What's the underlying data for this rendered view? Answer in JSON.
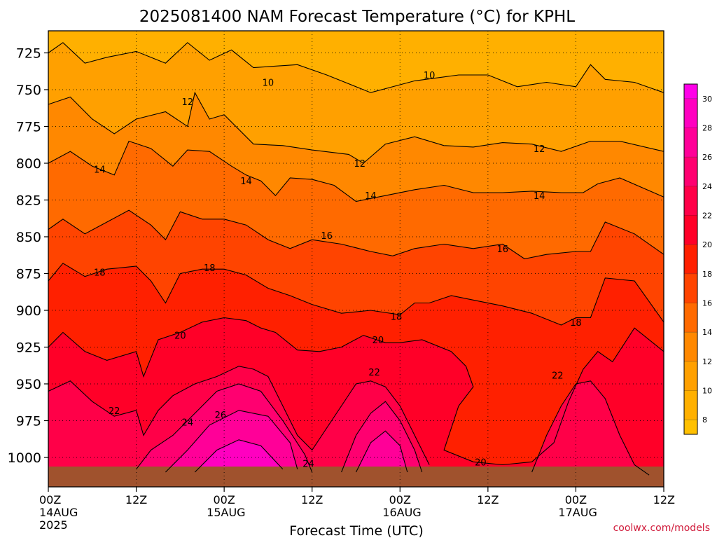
{
  "chart_data": {
    "type": "heatmap",
    "title": "2025081400 NAM Forecast Temperature (°C) for KPHL",
    "xlabel": "Forecast Time (UTC)",
    "credit": "coolwx.com/models",
    "x_ticks": [
      {
        "hour": 0,
        "label": "00Z",
        "date": "14AUG",
        "year": "2025"
      },
      {
        "hour": 12,
        "label": "12Z"
      },
      {
        "hour": 24,
        "label": "00Z",
        "date": "15AUG"
      },
      {
        "hour": 36,
        "label": "12Z"
      },
      {
        "hour": 48,
        "label": "00Z",
        "date": "16AUG"
      },
      {
        "hour": 60,
        "label": "12Z"
      },
      {
        "hour": 72,
        "label": "00Z",
        "date": "17AUG"
      },
      {
        "hour": 84,
        "label": "12Z"
      }
    ],
    "xlim": [
      0,
      84
    ],
    "y_ticks": [
      725,
      750,
      775,
      800,
      825,
      850,
      875,
      900,
      925,
      950,
      975,
      1000
    ],
    "ylim": [
      710,
      1020
    ],
    "y_reversed": true,
    "grid": true,
    "colorbar": {
      "ticks": [
        8,
        10,
        12,
        14,
        16,
        18,
        20,
        22,
        24,
        26,
        28,
        30
      ],
      "levels": [
        {
          "value": 7,
          "color": "#ffc000"
        },
        {
          "value": 9,
          "color": "#ffb000"
        },
        {
          "value": 11,
          "color": "#ffa000"
        },
        {
          "value": 13,
          "color": "#ff8800"
        },
        {
          "value": 15,
          "color": "#ff6a00"
        },
        {
          "value": 17,
          "color": "#ff4400"
        },
        {
          "value": 19,
          "color": "#ff2000"
        },
        {
          "value": 21,
          "color": "#ff0028"
        },
        {
          "value": 23,
          "color": "#ff0048"
        },
        {
          "value": 25,
          "color": "#ff0070"
        },
        {
          "value": 27,
          "color": "#ff0098"
        },
        {
          "value": 29,
          "color": "#ff00c0"
        },
        {
          "value": 31,
          "color": "#ff00e8"
        }
      ]
    },
    "contours": [
      {
        "value": 10,
        "points": [
          [
            0,
            725
          ],
          [
            2,
            718
          ],
          [
            5,
            732
          ],
          [
            8,
            728
          ],
          [
            12,
            724
          ],
          [
            16,
            732
          ],
          [
            19,
            718
          ],
          [
            22,
            730
          ],
          [
            25,
            723
          ],
          [
            28,
            735
          ],
          [
            34,
            733
          ],
          [
            38,
            740
          ],
          [
            44,
            752
          ],
          [
            50,
            744
          ],
          [
            56,
            740
          ],
          [
            60,
            740
          ],
          [
            64,
            748
          ],
          [
            68,
            745
          ],
          [
            72,
            748
          ],
          [
            74,
            733
          ],
          [
            76,
            743
          ],
          [
            80,
            745
          ],
          [
            84,
            752
          ]
        ]
      },
      {
        "value": 12,
        "points": [
          [
            0,
            760
          ],
          [
            3,
            755
          ],
          [
            6,
            770
          ],
          [
            9,
            780
          ],
          [
            12,
            770
          ],
          [
            16,
            765
          ],
          [
            19,
            775
          ],
          [
            20,
            752
          ],
          [
            22,
            770
          ],
          [
            24,
            767
          ],
          [
            28,
            787
          ],
          [
            32,
            788
          ],
          [
            36,
            791
          ],
          [
            41,
            794
          ],
          [
            43,
            800
          ],
          [
            46,
            787
          ],
          [
            50,
            782
          ],
          [
            54,
            788
          ],
          [
            58,
            789
          ],
          [
            62,
            786
          ],
          [
            66,
            787
          ],
          [
            70,
            792
          ],
          [
            74,
            785
          ],
          [
            78,
            785
          ],
          [
            84,
            792
          ]
        ]
      },
      {
        "value": 14,
        "points": [
          [
            0,
            800
          ],
          [
            3,
            792
          ],
          [
            6,
            802
          ],
          [
            9,
            808
          ],
          [
            11,
            785
          ],
          [
            14,
            790
          ],
          [
            17,
            802
          ],
          [
            19,
            791
          ],
          [
            22,
            792
          ],
          [
            25,
            802
          ],
          [
            27,
            808
          ],
          [
            29,
            812
          ],
          [
            31,
            822
          ],
          [
            33,
            810
          ],
          [
            36,
            811
          ],
          [
            39,
            815
          ],
          [
            42,
            826
          ],
          [
            46,
            822
          ],
          [
            50,
            818
          ],
          [
            54,
            815
          ],
          [
            58,
            820
          ],
          [
            62,
            820
          ],
          [
            66,
            819
          ],
          [
            70,
            820
          ],
          [
            73,
            820
          ],
          [
            75,
            814
          ],
          [
            78,
            810
          ],
          [
            84,
            823
          ]
        ]
      },
      {
        "value": 16,
        "points": [
          [
            0,
            845
          ],
          [
            2,
            838
          ],
          [
            5,
            848
          ],
          [
            8,
            840
          ],
          [
            11,
            832
          ],
          [
            14,
            842
          ],
          [
            16,
            852
          ],
          [
            18,
            833
          ],
          [
            21,
            838
          ],
          [
            24,
            838
          ],
          [
            27,
            842
          ],
          [
            30,
            852
          ],
          [
            33,
            858
          ],
          [
            36,
            852
          ],
          [
            40,
            855
          ],
          [
            44,
            860
          ],
          [
            47,
            863
          ],
          [
            50,
            858
          ],
          [
            54,
            855
          ],
          [
            58,
            858
          ],
          [
            62,
            855
          ],
          [
            65,
            865
          ],
          [
            68,
            862
          ],
          [
            72,
            860
          ],
          [
            74,
            860
          ],
          [
            76,
            840
          ],
          [
            80,
            848
          ],
          [
            84,
            862
          ]
        ]
      },
      {
        "value": 18,
        "points": [
          [
            0,
            880
          ],
          [
            2,
            868
          ],
          [
            5,
            877
          ],
          [
            8,
            872
          ],
          [
            12,
            870
          ],
          [
            14,
            880
          ],
          [
            16,
            895
          ],
          [
            18,
            875
          ],
          [
            21,
            872
          ],
          [
            24,
            872
          ],
          [
            27,
            876
          ],
          [
            30,
            885
          ],
          [
            33,
            890
          ],
          [
            36,
            896
          ],
          [
            40,
            902
          ],
          [
            44,
            900
          ],
          [
            48,
            903
          ],
          [
            50,
            895
          ],
          [
            52,
            895
          ],
          [
            55,
            890
          ],
          [
            58,
            893
          ],
          [
            62,
            897
          ],
          [
            66,
            902
          ],
          [
            70,
            910
          ],
          [
            72,
            905
          ],
          [
            74,
            905
          ],
          [
            76,
            878
          ],
          [
            80,
            880
          ],
          [
            84,
            908
          ]
        ]
      },
      {
        "value": 20,
        "points": [
          [
            0,
            925
          ],
          [
            2,
            915
          ],
          [
            5,
            928
          ],
          [
            8,
            934
          ],
          [
            12,
            928
          ],
          [
            13,
            945
          ],
          [
            15,
            920
          ],
          [
            18,
            915
          ],
          [
            21,
            908
          ],
          [
            24,
            905
          ],
          [
            27,
            907
          ],
          [
            29,
            912
          ],
          [
            31,
            915
          ],
          [
            34,
            927
          ],
          [
            37,
            928
          ],
          [
            40,
            925
          ],
          [
            43,
            917
          ],
          [
            46,
            922
          ],
          [
            48,
            922
          ],
          [
            51,
            920
          ],
          [
            55,
            928
          ],
          [
            57,
            938
          ],
          [
            58,
            952
          ],
          [
            56,
            965
          ],
          [
            54,
            995
          ],
          [
            58,
            1003
          ],
          [
            62,
            1005
          ],
          [
            66,
            1003
          ],
          [
            69,
            990
          ],
          [
            71,
            962
          ],
          [
            73,
            940
          ],
          [
            75,
            928
          ],
          [
            77,
            935
          ],
          [
            80,
            912
          ],
          [
            84,
            928
          ]
        ]
      },
      {
        "value": 22,
        "points": [
          [
            0,
            955
          ],
          [
            3,
            948
          ],
          [
            6,
            962
          ],
          [
            9,
            972
          ],
          [
            12,
            968
          ],
          [
            13,
            985
          ],
          [
            15,
            968
          ],
          [
            17,
            958
          ],
          [
            20,
            950
          ],
          [
            23,
            945
          ],
          [
            26,
            938
          ],
          [
            28,
            940
          ],
          [
            30,
            945
          ],
          [
            32,
            965
          ],
          [
            34,
            985
          ],
          [
            36,
            995
          ],
          [
            38,
            980
          ],
          [
            40,
            965
          ],
          [
            42,
            950
          ],
          [
            44,
            948
          ],
          [
            46,
            952
          ],
          [
            48,
            965
          ],
          [
            50,
            985
          ],
          [
            52,
            1005
          ]
        ]
      },
      {
        "value": 22,
        "points": [
          [
            66,
            1010
          ],
          [
            68,
            985
          ],
          [
            70,
            965
          ],
          [
            72,
            950
          ],
          [
            74,
            948
          ],
          [
            76,
            960
          ],
          [
            78,
            985
          ],
          [
            80,
            1005
          ],
          [
            82,
            1012
          ]
        ]
      },
      {
        "value": 24,
        "points": [
          [
            12,
            1008
          ],
          [
            14,
            995
          ],
          [
            17,
            985
          ],
          [
            20,
            970
          ],
          [
            23,
            955
          ],
          [
            26,
            950
          ],
          [
            29,
            955
          ],
          [
            32,
            975
          ],
          [
            35,
            998
          ],
          [
            36,
            1010
          ]
        ]
      },
      {
        "value": 24,
        "points": [
          [
            40,
            1010
          ],
          [
            42,
            985
          ],
          [
            44,
            970
          ],
          [
            46,
            962
          ],
          [
            48,
            975
          ],
          [
            50,
            995
          ],
          [
            51,
            1010
          ]
        ]
      },
      {
        "value": 26,
        "points": [
          [
            16,
            1010
          ],
          [
            19,
            995
          ],
          [
            22,
            978
          ],
          [
            26,
            968
          ],
          [
            30,
            972
          ],
          [
            33,
            990
          ],
          [
            34,
            1008
          ]
        ]
      },
      {
        "value": 26,
        "points": [
          [
            42,
            1010
          ],
          [
            44,
            990
          ],
          [
            46,
            982
          ],
          [
            48,
            992
          ],
          [
            49,
            1010
          ]
        ]
      },
      {
        "value": 28,
        "points": [
          [
            20,
            1010
          ],
          [
            23,
            995
          ],
          [
            26,
            988
          ],
          [
            29,
            992
          ],
          [
            32,
            1008
          ]
        ]
      }
    ],
    "contour_labels": [
      {
        "value": "10",
        "x": 30,
        "y": 745
      },
      {
        "value": "10",
        "x": 52,
        "y": 740
      },
      {
        "value": "12",
        "x": 19.0,
        "y": 758
      },
      {
        "value": "12",
        "x": 42.5,
        "y": 800
      },
      {
        "value": "12",
        "x": 67,
        "y": 790
      },
      {
        "value": "14",
        "x": 7,
        "y": 804
      },
      {
        "value": "14",
        "x": 27,
        "y": 812
      },
      {
        "value": "14",
        "x": 44,
        "y": 822
      },
      {
        "value": "14",
        "x": 67,
        "y": 822
      },
      {
        "value": "16",
        "x": 38,
        "y": 849
      },
      {
        "value": "16",
        "x": 62,
        "y": 858
      },
      {
        "value": "18",
        "x": 7,
        "y": 874
      },
      {
        "value": "18",
        "x": 22,
        "y": 871
      },
      {
        "value": "18",
        "x": 47.5,
        "y": 904
      },
      {
        "value": "18",
        "x": 72,
        "y": 908
      },
      {
        "value": "20",
        "x": 18,
        "y": 917
      },
      {
        "value": "20",
        "x": 45,
        "y": 920
      },
      {
        "value": "20",
        "x": 59,
        "y": 1003
      },
      {
        "value": "22",
        "x": 9,
        "y": 968
      },
      {
        "value": "22",
        "x": 44.5,
        "y": 942
      },
      {
        "value": "22",
        "x": 69.5,
        "y": 944
      },
      {
        "value": "24",
        "x": 19,
        "y": 976
      },
      {
        "value": "24",
        "x": 35.5,
        "y": 1004
      },
      {
        "value": "26",
        "x": 23.5,
        "y": 971
      }
    ]
  }
}
